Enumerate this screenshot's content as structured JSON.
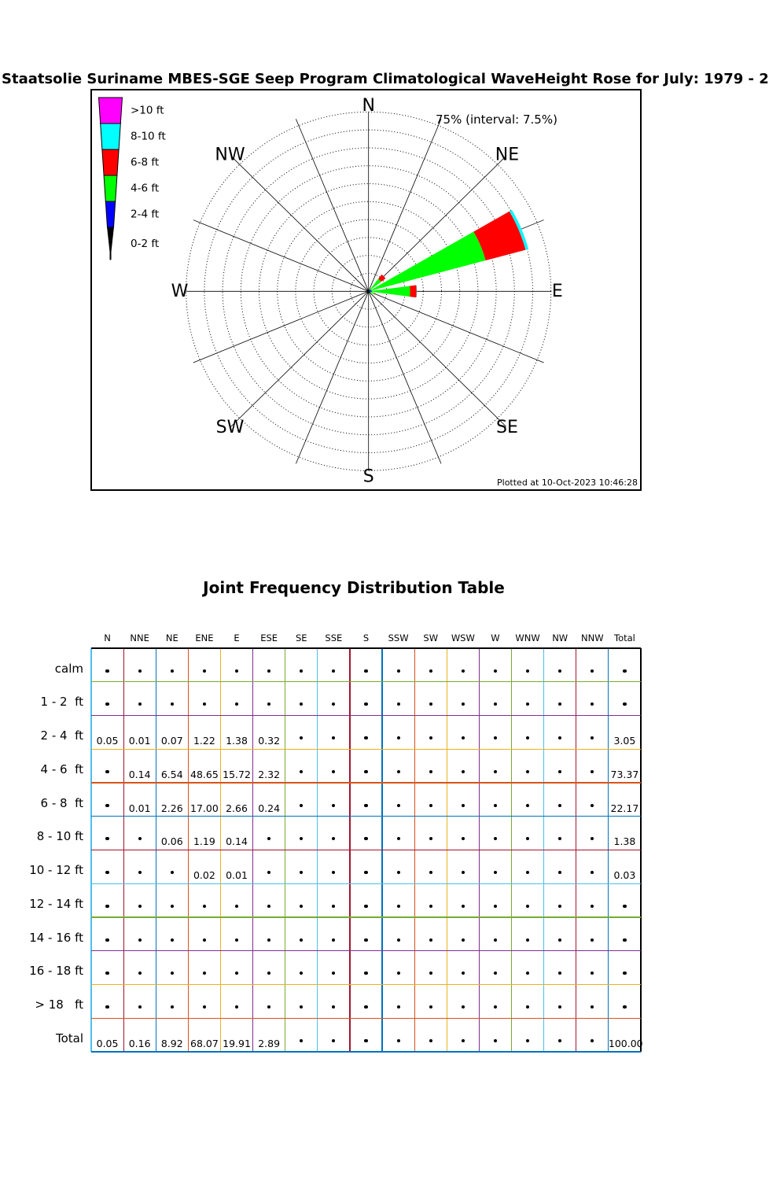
{
  "page": {
    "title": "Staatsolie Suriname MBES-SGE Seep Program Climatological WaveHeight Rose for July: 1979 - 2"
  },
  "rose": {
    "radial_max_label": "75% (interval: 7.5%)",
    "plotted_at": "Plotted at 10-Oct-2023 10:46:28",
    "compass_labels": [
      {
        "text": "N",
        "deg": 0
      },
      {
        "text": "NE",
        "deg": 45
      },
      {
        "text": "E",
        "deg": 90
      },
      {
        "text": "SE",
        "deg": 135
      },
      {
        "text": "S",
        "deg": 180
      },
      {
        "text": "SW",
        "deg": 225
      },
      {
        "text": "W",
        "deg": 270
      },
      {
        "text": "NW",
        "deg": 315
      }
    ]
  },
  "legend": {
    "items": [
      {
        "label": ">10 ft",
        "color": "#FF00FF"
      },
      {
        "label": "8-10 ft",
        "color": "#00FFFF"
      },
      {
        "label": "6-8 ft",
        "color": "#FF0000"
      },
      {
        "label": "4-6 ft",
        "color": "#00FF00"
      },
      {
        "label": "2-4 ft",
        "color": "#0000FF"
      },
      {
        "label": "0-2 ft",
        "color": "#000000"
      }
    ]
  },
  "chart_data": {
    "type": "windrose",
    "title": "Staatsolie Suriname MBES-SGE Seep Program Climatological WaveHeight Rose for July: 1979 - 2",
    "radial_axis": {
      "max_percent": 75,
      "ring_interval_percent": 7.5,
      "rings": 10,
      "label": "75% (interval: 7.5%)"
    },
    "petal_half_width_deg": 7.5,
    "directions": [
      "N",
      "NNE",
      "NE",
      "ENE",
      "E",
      "ESE",
      "SE",
      "SSE",
      "S",
      "SSW",
      "SW",
      "WSW",
      "W",
      "WNW",
      "NW",
      "NNW"
    ],
    "bins": [
      {
        "label": "0-2 ft",
        "color": "#000000",
        "values": [
          0,
          0,
          0,
          0,
          0,
          0,
          0,
          0,
          0,
          0,
          0,
          0,
          0,
          0,
          0,
          0
        ]
      },
      {
        "label": "2-4 ft",
        "color": "#0000FF",
        "values": [
          0.05,
          0.01,
          0.07,
          1.22,
          1.38,
          0.32,
          0,
          0,
          0,
          0,
          0,
          0,
          0,
          0,
          0,
          0
        ]
      },
      {
        "label": "4-6 ft",
        "color": "#00FF00",
        "values": [
          0,
          0.14,
          6.54,
          48.65,
          15.72,
          2.32,
          0,
          0,
          0,
          0,
          0,
          0,
          0,
          0,
          0,
          0
        ]
      },
      {
        "label": "6-8 ft",
        "color": "#FF0000",
        "values": [
          0,
          0.01,
          2.26,
          17.0,
          2.66,
          0.24,
          0,
          0,
          0,
          0,
          0,
          0,
          0,
          0,
          0,
          0
        ]
      },
      {
        "label": "8-10 ft",
        "color": "#00FFFF",
        "values": [
          0,
          0,
          0.06,
          1.19,
          0.14,
          0,
          0,
          0,
          0,
          0,
          0,
          0,
          0,
          0,
          0,
          0
        ]
      },
      {
        "label": ">10 ft",
        "color": "#FF00FF",
        "values": [
          0,
          0,
          0,
          0.02,
          0.01,
          0,
          0,
          0,
          0,
          0,
          0,
          0,
          0,
          0,
          0,
          0
        ]
      }
    ]
  },
  "table": {
    "title": "Joint Frequency Distribution Table",
    "columns": [
      "N",
      "NNE",
      "NE",
      "ENE",
      "E",
      "ESE",
      "SE",
      "SSE",
      "S",
      "SSW",
      "SW",
      "WSW",
      "W",
      "WNW",
      "NW",
      "NNW",
      "Total"
    ],
    "rows": [
      {
        "label": "calm",
        "values": [
          null,
          null,
          null,
          null,
          null,
          null,
          null,
          null,
          null,
          null,
          null,
          null,
          null,
          null,
          null,
          null,
          null
        ]
      },
      {
        "label": "1 - 2  ft",
        "values": [
          null,
          null,
          null,
          null,
          null,
          null,
          null,
          null,
          null,
          null,
          null,
          null,
          null,
          null,
          null,
          null,
          null
        ]
      },
      {
        "label": "2 - 4  ft",
        "values": [
          "0.05",
          "0.01",
          "0.07",
          "1.22",
          "1.38",
          "0.32",
          null,
          null,
          null,
          null,
          null,
          null,
          null,
          null,
          null,
          null,
          "3.05"
        ]
      },
      {
        "label": "4 - 6  ft",
        "values": [
          null,
          "0.14",
          "6.54",
          "48.65",
          "15.72",
          "2.32",
          null,
          null,
          null,
          null,
          null,
          null,
          null,
          null,
          null,
          null,
          "73.37"
        ]
      },
      {
        "label": "6 - 8  ft",
        "values": [
          null,
          "0.01",
          "2.26",
          "17.00",
          "2.66",
          "0.24",
          null,
          null,
          null,
          null,
          null,
          null,
          null,
          null,
          null,
          null,
          "22.17"
        ]
      },
      {
        "label": "8 - 10 ft",
        "values": [
          null,
          null,
          "0.06",
          "1.19",
          "0.14",
          null,
          null,
          null,
          null,
          null,
          null,
          null,
          null,
          null,
          null,
          null,
          "1.38"
        ]
      },
      {
        "label": "10 - 12 ft",
        "values": [
          null,
          null,
          null,
          "0.02",
          "0.01",
          null,
          null,
          null,
          null,
          null,
          null,
          null,
          null,
          null,
          null,
          null,
          "0.03"
        ]
      },
      {
        "label": "12 - 14 ft",
        "values": [
          null,
          null,
          null,
          null,
          null,
          null,
          null,
          null,
          null,
          null,
          null,
          null,
          null,
          null,
          null,
          null,
          null
        ]
      },
      {
        "label": "14 - 16 ft",
        "values": [
          null,
          null,
          null,
          null,
          null,
          null,
          null,
          null,
          null,
          null,
          null,
          null,
          null,
          null,
          null,
          null,
          null
        ]
      },
      {
        "label": "16 - 18 ft",
        "values": [
          null,
          null,
          null,
          null,
          null,
          null,
          null,
          null,
          null,
          null,
          null,
          null,
          null,
          null,
          null,
          null,
          null
        ]
      },
      {
        "label": "> 18   ft",
        "values": [
          null,
          null,
          null,
          null,
          null,
          null,
          null,
          null,
          null,
          null,
          null,
          null,
          null,
          null,
          null,
          null,
          null
        ]
      },
      {
        "label": "Total",
        "values": [
          "0.05",
          "0.16",
          "8.92",
          "68.07",
          "19.91",
          "2.89",
          null,
          null,
          null,
          null,
          null,
          null,
          null,
          null,
          null,
          null,
          "100.00"
        ]
      }
    ],
    "grid_colors": {
      "vertical": [
        "#4DBEEE",
        "#A2142F",
        "#0072BD",
        "#D95319",
        "#EDB120",
        "#7E2F8E",
        "#77AC30",
        "#4DBEEE",
        "#A2142F",
        "#0072BD",
        "#D95319",
        "#EDB120",
        "#7E2F8E",
        "#77AC30",
        "#4DBEEE",
        "#A2142F",
        "#0072BD",
        "#000000"
      ],
      "horizontal": [
        "#000000",
        "#77AC30",
        "#7E2F8E",
        "#EDB120",
        "#D95319",
        "#0072BD",
        "#A2142F",
        "#4DBEEE",
        "#77AC30",
        "#7E2F8E",
        "#EDB120",
        "#D95319",
        "#0072BD"
      ]
    }
  }
}
